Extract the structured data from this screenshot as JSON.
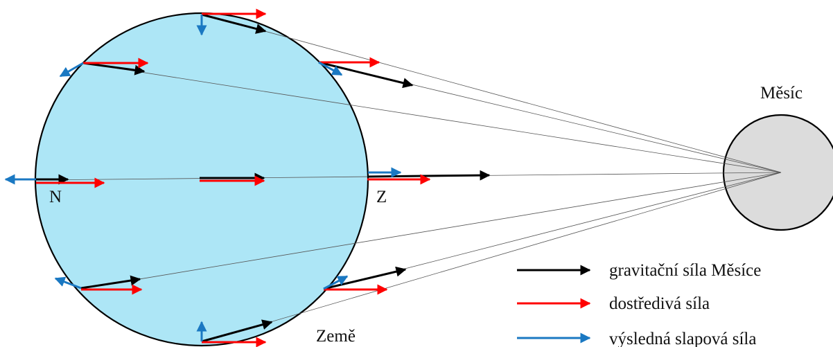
{
  "labels": {
    "moon": "Měsíc",
    "earth": "Země",
    "near_point": "Z",
    "far_point": "N"
  },
  "legend": {
    "gravity": "gravitační síla Měsíce",
    "centripetal": "dostředivá síla",
    "tidal": "výsledná slapová síla"
  },
  "colors": {
    "earth_fill": "#ade6f6",
    "moon_fill": "#dcdcdc",
    "outline": "#000000",
    "gravity_arrow": "#000000",
    "centripetal_arrow": "#ff0000",
    "tidal_arrow": "#1a78c2",
    "ray_line": "#555555"
  }
}
